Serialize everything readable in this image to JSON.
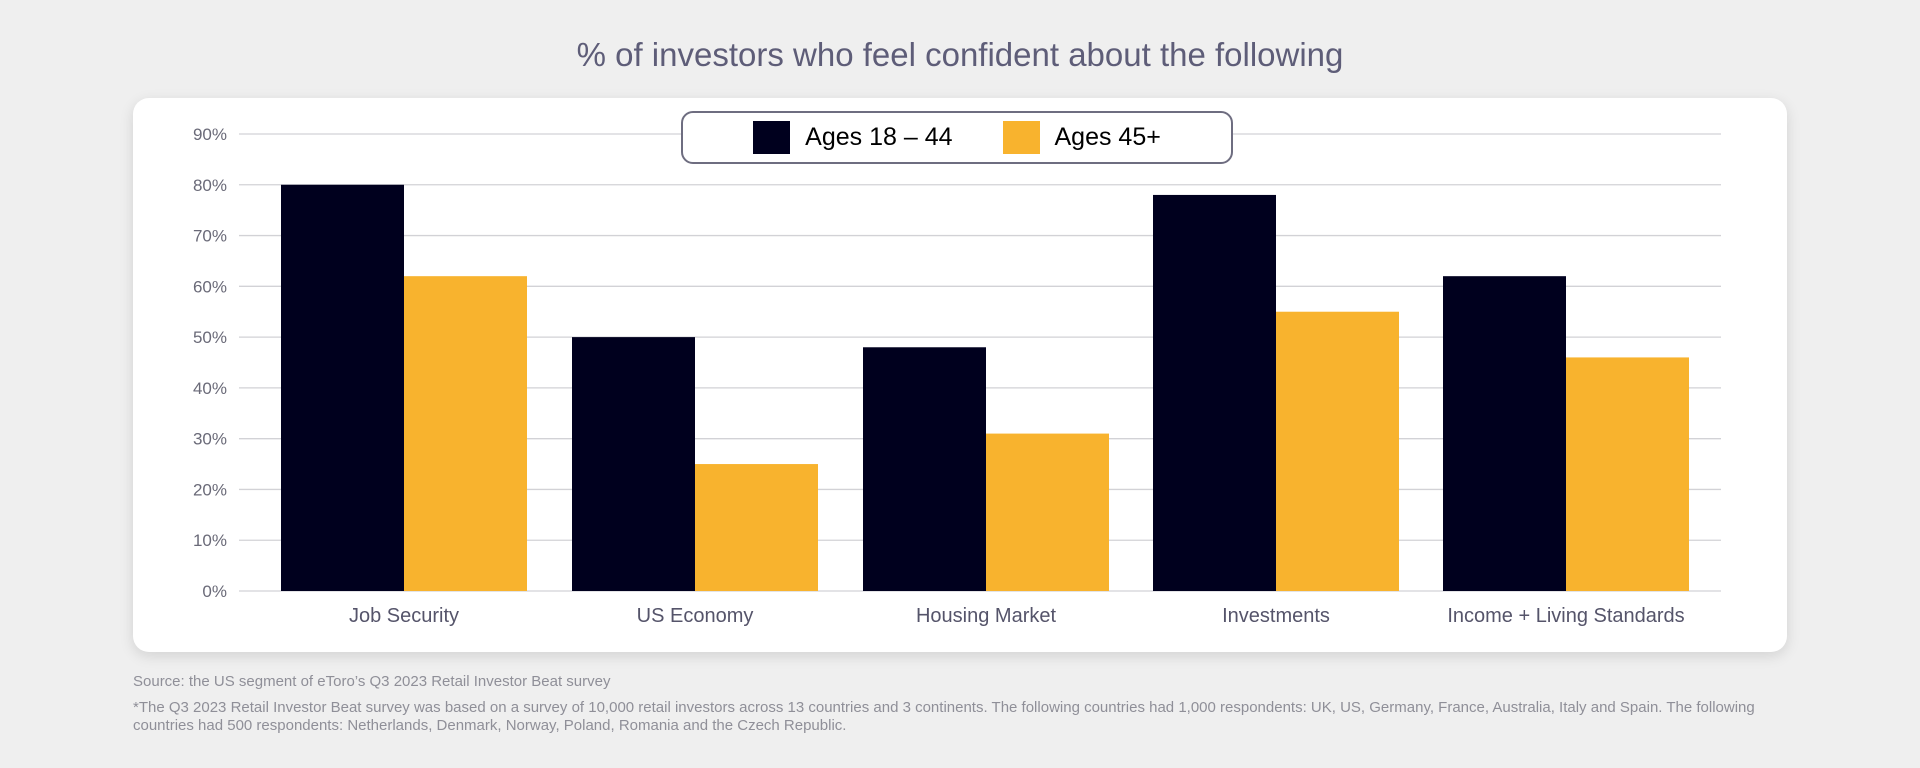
{
  "chart_data": {
    "type": "bar",
    "title": "% of investors who feel confident about the following",
    "categories": [
      "Job Security",
      "US Economy",
      "Housing Market",
      "Investments",
      "Income + Living Standards"
    ],
    "series": [
      {
        "name": "Ages 18 – 44",
        "color": "#00001e",
        "values": [
          80,
          50,
          48,
          78,
          62
        ]
      },
      {
        "name": "Ages 45+",
        "color": "#f8b32e",
        "values": [
          62,
          25,
          31,
          55,
          46
        ]
      }
    ],
    "yticks": [
      "0%",
      "10%",
      "20%",
      "30%",
      "40%",
      "50%",
      "60%",
      "70%",
      "80%",
      "90%"
    ],
    "ylim": [
      0,
      90
    ],
    "grid": true,
    "legend_position": "top-center",
    "xlabel": "",
    "ylabel": ""
  },
  "footer": {
    "source": "Source: the US segment of eToro’s Q3 2023 Retail Investor Beat survey",
    "note": "*The Q3 2023 Retail Investor Beat survey was based on a survey of 10,000 retail investors across 13 countries and 3 continents. The following countries had 1,000 respondents: UK, US, Germany, France, Australia, Italy and Spain. The following countries had 500 respondents: Netherlands, Denmark, Norway, Poland, Romania and the Czech Republic."
  }
}
